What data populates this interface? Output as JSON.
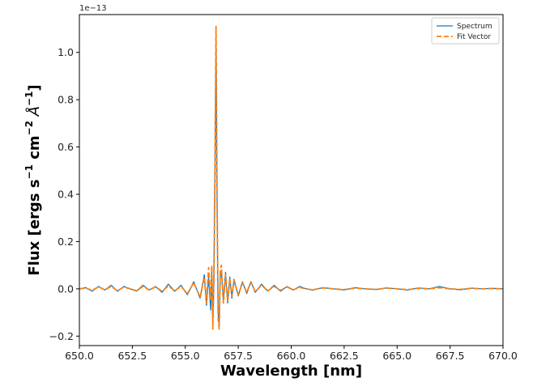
{
  "chart_data": {
    "type": "line",
    "xlabel": "Wavelength [nm]",
    "ylabel_main": "Flux [ergs s",
    "ylabel_parts": {
      "s_exp": "−1",
      "cm": " cm",
      "cm_exp": "−2",
      "angstrom": " Å",
      "a_exp": "−1",
      "close": "]"
    },
    "y_offset_text": "1e−13",
    "xlim": [
      650.0,
      670.0
    ],
    "ylim": [
      -0.24,
      1.16
    ],
    "x_ticks": [
      650.0,
      652.5,
      655.0,
      657.5,
      660.0,
      662.5,
      665.0,
      667.5,
      670.0
    ],
    "x_tick_labels": [
      "650.0",
      "652.5",
      "655.0",
      "657.5",
      "660.0",
      "662.5",
      "665.0",
      "667.5",
      "670.0"
    ],
    "y_ticks": [
      -0.2,
      0.0,
      0.2,
      0.4,
      0.6,
      0.8,
      1.0
    ],
    "y_tick_labels": [
      "−0.2",
      "0.0",
      "0.2",
      "0.4",
      "0.6",
      "0.8",
      "1.0"
    ],
    "legend_position": "top-right",
    "grid": false,
    "colors": {
      "spectrum": "#1f77b4",
      "fit": "#ff7f0e"
    },
    "series": [
      {
        "name": "Spectrum",
        "style": "solid",
        "x": [
          650.0,
          650.3,
          650.6,
          650.9,
          651.2,
          651.5,
          651.8,
          652.1,
          652.4,
          652.7,
          653.0,
          653.3,
          653.6,
          653.9,
          654.2,
          654.5,
          654.8,
          655.1,
          655.4,
          655.7,
          655.9,
          656.0,
          656.1,
          656.2,
          656.25,
          656.3,
          656.35,
          656.4,
          656.45,
          656.5,
          656.55,
          656.6,
          656.65,
          656.7,
          656.8,
          656.9,
          657.0,
          657.1,
          657.2,
          657.3,
          657.5,
          657.7,
          657.9,
          658.1,
          658.3,
          658.6,
          658.9,
          659.2,
          659.5,
          659.8,
          660.1,
          660.4,
          660.7,
          661.0,
          661.5,
          662.0,
          662.5,
          663.0,
          663.5,
          664.0,
          664.5,
          665.0,
          665.5,
          666.0,
          666.5,
          667.0,
          667.5,
          668.0,
          668.5,
          669.0,
          669.5,
          670.0
        ],
        "y": [
          0.0,
          0.005,
          -0.01,
          0.01,
          -0.005,
          0.015,
          -0.01,
          0.01,
          0.0,
          -0.01,
          0.015,
          -0.005,
          0.01,
          -0.015,
          0.02,
          -0.01,
          0.015,
          -0.025,
          0.03,
          -0.04,
          0.06,
          -0.07,
          0.05,
          -0.09,
          0.08,
          -0.15,
          0.03,
          0.45,
          1.08,
          0.35,
          -0.1,
          -0.16,
          0.05,
          0.08,
          -0.05,
          0.07,
          -0.06,
          0.05,
          -0.04,
          0.04,
          -0.03,
          0.03,
          -0.02,
          0.03,
          -0.015,
          0.02,
          -0.01,
          0.015,
          -0.01,
          0.01,
          -0.005,
          0.01,
          0.0,
          -0.005,
          0.005,
          0.0,
          -0.005,
          0.005,
          0.0,
          -0.003,
          0.004,
          0.0,
          -0.005,
          0.004,
          0.0,
          0.01,
          0.0,
          -0.004,
          0.003,
          0.0,
          0.002,
          0.0
        ]
      },
      {
        "name": "Fit Vector",
        "style": "dashed",
        "x": [
          650.0,
          650.3,
          650.6,
          650.9,
          651.2,
          651.5,
          651.8,
          652.1,
          652.4,
          652.7,
          653.0,
          653.3,
          653.6,
          653.9,
          654.2,
          654.5,
          654.8,
          655.1,
          655.4,
          655.7,
          655.9,
          656.0,
          656.1,
          656.2,
          656.25,
          656.3,
          656.35,
          656.4,
          656.45,
          656.5,
          656.55,
          656.6,
          656.65,
          656.7,
          656.8,
          656.9,
          657.0,
          657.1,
          657.2,
          657.3,
          657.5,
          657.7,
          657.9,
          658.1,
          658.3,
          658.6,
          658.9,
          659.2,
          659.5,
          659.8,
          660.1,
          660.4,
          660.7,
          661.0,
          661.5,
          662.0,
          662.5,
          663.0,
          663.5,
          664.0,
          664.5,
          665.0,
          665.5,
          666.0,
          666.5,
          667.0,
          667.5,
          668.0,
          668.5,
          669.0,
          669.5,
          670.0
        ],
        "y": [
          0.0,
          0.003,
          -0.006,
          0.008,
          -0.004,
          0.01,
          -0.008,
          0.008,
          0.0,
          -0.008,
          0.01,
          -0.004,
          0.008,
          -0.01,
          0.012,
          -0.008,
          0.01,
          -0.02,
          0.025,
          -0.035,
          0.05,
          -0.06,
          0.09,
          -0.05,
          0.1,
          -0.17,
          0.06,
          0.5,
          1.11,
          0.4,
          -0.12,
          -0.17,
          0.07,
          0.1,
          -0.06,
          0.06,
          -0.05,
          0.04,
          -0.03,
          0.035,
          -0.025,
          0.025,
          -0.015,
          0.03,
          -0.012,
          0.015,
          -0.008,
          0.01,
          -0.006,
          0.008,
          -0.004,
          0.006,
          0.0,
          -0.004,
          0.004,
          0.0,
          -0.003,
          0.003,
          0.0,
          -0.002,
          0.003,
          0.0,
          -0.003,
          0.002,
          0.0,
          0.005,
          0.0,
          -0.002,
          0.002,
          0.0,
          0.001,
          0.0
        ]
      }
    ]
  }
}
